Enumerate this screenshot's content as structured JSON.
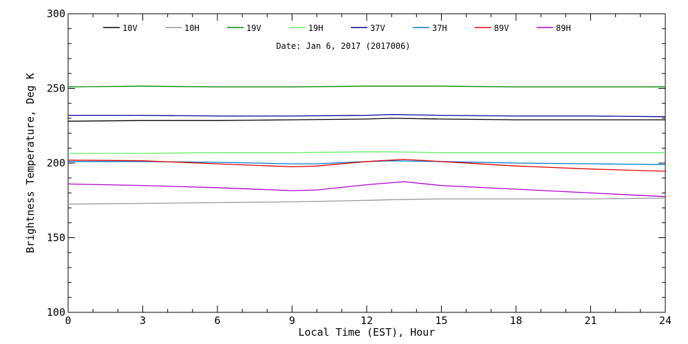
{
  "chart_data": {
    "type": "line",
    "title": "",
    "subtitle": "Date: Jan  6, 2017 (2017006)",
    "xlabel": "Local Time (EST), Hour",
    "ylabel": "Brightness Temperature, Deg K",
    "xlim": [
      0,
      24
    ],
    "ylim": [
      100,
      300
    ],
    "xticks": [
      0,
      3,
      6,
      9,
      12,
      15,
      18,
      21,
      24
    ],
    "yticks": [
      100,
      150,
      200,
      250,
      300
    ],
    "xtick_labels": [
      "0",
      "3",
      "6",
      "9",
      "12",
      "15",
      "18",
      "21",
      "24"
    ],
    "ytick_labels": [
      "100",
      "150",
      "200",
      "250",
      "300"
    ],
    "grid": false,
    "legend_position": "top",
    "series": [
      {
        "name": "10V",
        "color": "#000000",
        "x": [
          0,
          3,
          6,
          9,
          12,
          13,
          15,
          18,
          21,
          24
        ],
        "y": [
          228,
          228.5,
          228.5,
          229,
          229.5,
          230,
          229.5,
          229,
          229,
          229
        ]
      },
      {
        "name": "10H",
        "color": "#999999",
        "x": [
          0,
          3,
          6,
          9,
          12,
          13,
          15,
          18,
          21,
          24
        ],
        "y": [
          172.5,
          173,
          173.5,
          174,
          175,
          175.5,
          176,
          176,
          176,
          176.5
        ]
      },
      {
        "name": "19V",
        "color": "#008800",
        "x": [
          0,
          3,
          6,
          9,
          12,
          15,
          18,
          21,
          24
        ],
        "y": [
          251,
          251.5,
          251,
          251,
          251.5,
          251.5,
          251,
          251,
          251
        ]
      },
      {
        "name": "19H",
        "color": "#66ee66",
        "x": [
          0,
          3,
          6,
          9,
          12,
          13,
          15,
          18,
          21,
          24
        ],
        "y": [
          206.5,
          206.5,
          207,
          207,
          207.5,
          207.5,
          207,
          207,
          207,
          207
        ]
      },
      {
        "name": "37V",
        "color": "#000099",
        "x": [
          0,
          3,
          6,
          9,
          12,
          13,
          15,
          18,
          21,
          24
        ],
        "y": [
          232,
          232,
          231.5,
          231.5,
          232,
          232.5,
          232,
          231.5,
          231.5,
          231
        ]
      },
      {
        "name": "37H",
        "color": "#0077cc",
        "x": [
          0,
          3,
          6,
          9,
          10,
          12,
          13,
          15,
          18,
          21,
          24
        ],
        "y": [
          201,
          201,
          200.5,
          199.5,
          199.5,
          201,
          201.5,
          201,
          200,
          199.5,
          199
        ]
      },
      {
        "name": "89V",
        "color": "#dd0000",
        "x": [
          0,
          3,
          6,
          9,
          10,
          12,
          13.5,
          15,
          18,
          21,
          24
        ],
        "y": [
          202,
          201.5,
          199.5,
          197.5,
          198,
          201,
          202.5,
          201,
          198,
          196,
          194.5
        ]
      },
      {
        "name": "89H",
        "color": "#aa00cc",
        "x": [
          0,
          3,
          6,
          9,
          10,
          12,
          13.5,
          15,
          18,
          21,
          24
        ],
        "y": [
          186,
          185,
          183.5,
          181.5,
          182,
          185.5,
          187.5,
          185,
          182.5,
          180,
          177.5
        ]
      }
    ]
  }
}
